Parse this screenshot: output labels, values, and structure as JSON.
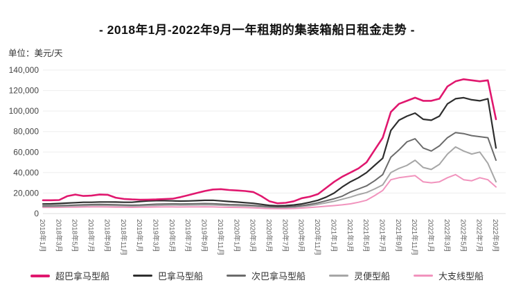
{
  "header": {
    "title": "- 2018年1月-2022年9月一年租期的集装箱船日租金走势 -",
    "unit_label": "单位：美元/天"
  },
  "chart_data": {
    "type": "line",
    "title": "- 2018年1月-2022年9月一年租期的集装箱船日租金走势 -",
    "xlabel": "",
    "ylabel": "美元/天",
    "ylim": [
      0,
      140000
    ],
    "y_ticks": [
      0,
      20000,
      40000,
      60000,
      80000,
      100000,
      120000,
      140000
    ],
    "grid": true,
    "legend_position": "bottom",
    "x_tick_labels": [
      "2018年1月",
      "2018年3月",
      "2018年5月",
      "2018年7月",
      "2018年9月",
      "2018年11月",
      "2019年1月",
      "2019年3月",
      "2019年5月",
      "2019年7月",
      "2019年9月",
      "2019年11月",
      "2020年1月",
      "2020年3月",
      "2020年5月",
      "2020年7月",
      "2020年9月",
      "2020年11月",
      "2021年1月",
      "2021年3月",
      "2021年5月",
      "2021年7月",
      "2021年9月",
      "2021年11月",
      "2022年1月",
      "2022年3月",
      "2022年5月",
      "2022年7月",
      "2022年9月"
    ],
    "x": [
      "2018年1月",
      "2018年2月",
      "2018年3月",
      "2018年4月",
      "2018年5月",
      "2018年6月",
      "2018年7月",
      "2018年8月",
      "2018年9月",
      "2018年10月",
      "2018年11月",
      "2018年12月",
      "2019年1月",
      "2019年2月",
      "2019年3月",
      "2019年4月",
      "2019年5月",
      "2019年6月",
      "2019年7月",
      "2019年8月",
      "2019年9月",
      "2019年10月",
      "2019年11月",
      "2019年12月",
      "2020年1月",
      "2020年2月",
      "2020年3月",
      "2020年4月",
      "2020年5月",
      "2020年6月",
      "2020年7月",
      "2020年8月",
      "2020年9月",
      "2020年10月",
      "2020年11月",
      "2020年12月",
      "2021年1月",
      "2021年2月",
      "2021年3月",
      "2021年4月",
      "2021年5月",
      "2021年6月",
      "2021年7月",
      "2021年8月",
      "2021年9月",
      "2021年10月",
      "2021年11月",
      "2021年12月",
      "2022年1月",
      "2022年2月",
      "2022年3月",
      "2022年4月",
      "2022年5月",
      "2022年6月",
      "2022年7月",
      "2022年8月",
      "2022年9月"
    ],
    "series": [
      {
        "name": "超巴拿马型船",
        "color": "#e0176e",
        "line_width": 2.6,
        "values": [
          13000,
          13000,
          13200,
          17000,
          18500,
          17200,
          17500,
          18500,
          18300,
          15500,
          14300,
          13800,
          13500,
          13600,
          13800,
          14200,
          14500,
          16000,
          18000,
          20000,
          22000,
          23500,
          23800,
          23000,
          22500,
          22000,
          21000,
          17000,
          12000,
          10000,
          10500,
          12000,
          15000,
          16500,
          19000,
          25000,
          31000,
          36000,
          40000,
          44000,
          50000,
          62000,
          74000,
          99000,
          107000,
          110000,
          113000,
          110000,
          110000,
          112000,
          124000,
          129000,
          131000,
          130000,
          129000,
          130000,
          92000
        ]
      },
      {
        "name": "巴拿马型船",
        "color": "#2e2e2e",
        "line_width": 2.2,
        "values": [
          9300,
          9500,
          9800,
          10200,
          10600,
          11000,
          11000,
          11300,
          11300,
          11200,
          11000,
          11000,
          11800,
          12300,
          12600,
          12600,
          12400,
          12200,
          12300,
          12600,
          12900,
          13000,
          12400,
          11800,
          11200,
          10600,
          10000,
          9000,
          8000,
          7600,
          7800,
          8400,
          9400,
          11000,
          13000,
          16000,
          20000,
          26000,
          31000,
          35000,
          40000,
          47000,
          54000,
          81000,
          91000,
          95000,
          98000,
          92000,
          91000,
          95000,
          107000,
          112000,
          113000,
          111000,
          110000,
          112000,
          64000
        ]
      },
      {
        "name": "次巴拿马型船",
        "color": "#6b6b6b",
        "line_width": 2,
        "values": [
          7500,
          7600,
          7800,
          8000,
          8300,
          8600,
          8800,
          9000,
          8800,
          8600,
          8400,
          8200,
          8400,
          8800,
          9200,
          9400,
          9500,
          9400,
          9500,
          9600,
          9800,
          9600,
          9200,
          8800,
          8600,
          8400,
          8000,
          7400,
          6800,
          6500,
          6600,
          7000,
          7800,
          9000,
          10500,
          12500,
          14500,
          17000,
          21000,
          24000,
          27000,
          32000,
          38000,
          55000,
          62000,
          70000,
          73000,
          64000,
          61000,
          66000,
          74000,
          79000,
          78000,
          76000,
          75000,
          74000,
          52000
        ]
      },
      {
        "name": "灵便型船",
        "color": "#a6a6a6",
        "line_width": 2,
        "values": [
          7000,
          7000,
          7100,
          7300,
          7500,
          7700,
          7900,
          8000,
          7900,
          7800,
          7600,
          7400,
          7500,
          7800,
          8000,
          8200,
          8300,
          8200,
          8300,
          8400,
          8500,
          8400,
          8100,
          7800,
          7600,
          7400,
          7100,
          6600,
          6100,
          5900,
          6000,
          6300,
          6900,
          7800,
          9000,
          10500,
          12000,
          14000,
          16000,
          18500,
          20500,
          24000,
          28000,
          40000,
          44000,
          47000,
          52000,
          45000,
          43000,
          48000,
          58000,
          65000,
          61000,
          58000,
          60000,
          49000,
          31000
        ]
      },
      {
        "name": "大支线型船",
        "color": "#f193bd",
        "line_width": 2,
        "values": [
          6000,
          6000,
          6100,
          6200,
          6300,
          6400,
          6500,
          6500,
          6400,
          6300,
          6200,
          6100,
          6200,
          6300,
          6400,
          6500,
          6500,
          6400,
          6500,
          6500,
          6600,
          6500,
          6300,
          6100,
          6000,
          5800,
          5600,
          5200,
          4900,
          4800,
          4800,
          5000,
          5400,
          5900,
          6500,
          7200,
          7800,
          8500,
          9500,
          11000,
          13000,
          17500,
          22500,
          33000,
          35000,
          36000,
          37000,
          31000,
          30000,
          31000,
          35000,
          38000,
          33000,
          32000,
          35000,
          33000,
          26000
        ]
      }
    ]
  }
}
